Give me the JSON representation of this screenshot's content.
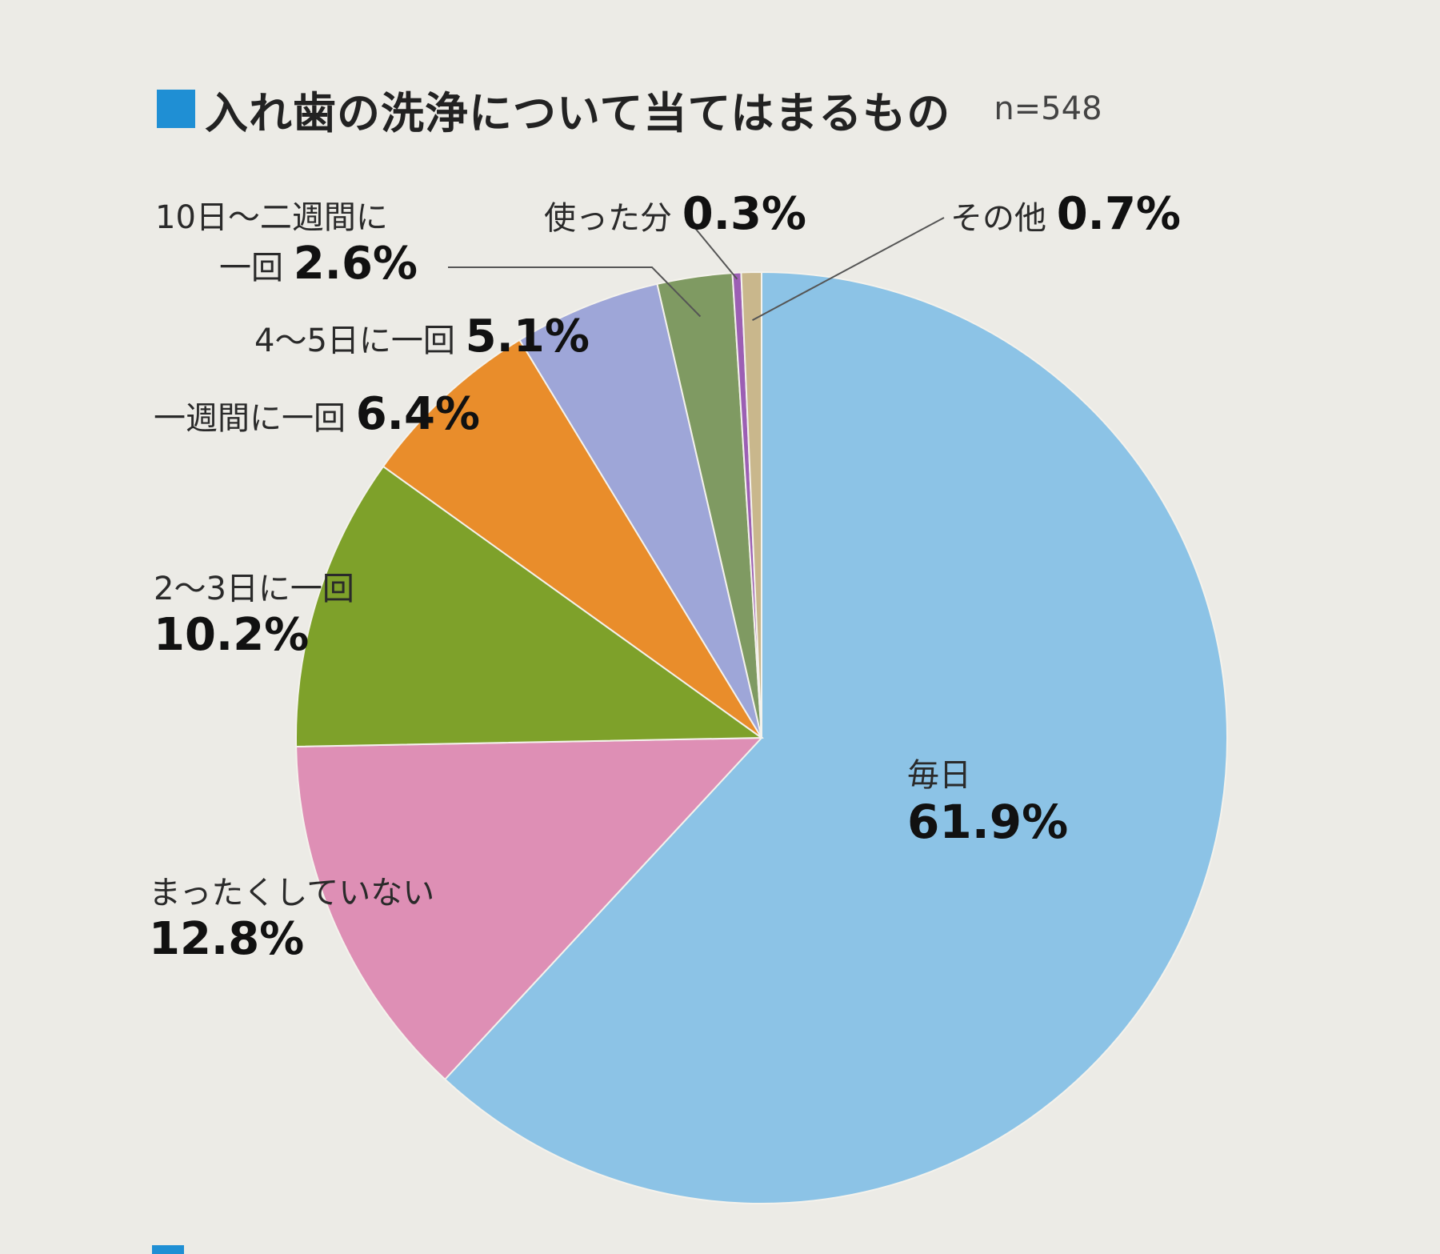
{
  "title": "入れ歯の洗浄について当てはまるもの",
  "sample_size": "n=548",
  "colors": {
    "title_square": "#1f8fd4",
    "background": "#ecebe6"
  },
  "chart_data": {
    "type": "pie",
    "title": "入れ歯の洗浄について当てはまるもの",
    "n": 548,
    "slices": [
      {
        "label": "毎日",
        "value": 61.9,
        "value_label": "61.9%",
        "color": "#8cc3e6"
      },
      {
        "label": "まったくしていない",
        "value": 12.8,
        "value_label": "12.8%",
        "color": "#de8fb5"
      },
      {
        "label": "2～3日に一回",
        "value": 10.2,
        "value_label": "10.2%",
        "color": "#7ea12a"
      },
      {
        "label": "一週間に一回",
        "value": 6.4,
        "value_label": "6.4%",
        "color": "#e98d2b"
      },
      {
        "label": "4～5日に一回",
        "value": 5.1,
        "value_label": "5.1%",
        "color": "#9ea6d8"
      },
      {
        "label_line1": "10日～二週間に",
        "label_line2": "一回",
        "label": "10日～二週間に一回",
        "value": 2.6,
        "value_label": "2.6%",
        "color": "#7f9a62"
      },
      {
        "label": "使った分",
        "value": 0.3,
        "value_label": "0.3%",
        "color": "#9c5fb4"
      },
      {
        "label": "その他",
        "value": 0.7,
        "value_label": "0.7%",
        "color": "#c9b78c"
      }
    ]
  }
}
